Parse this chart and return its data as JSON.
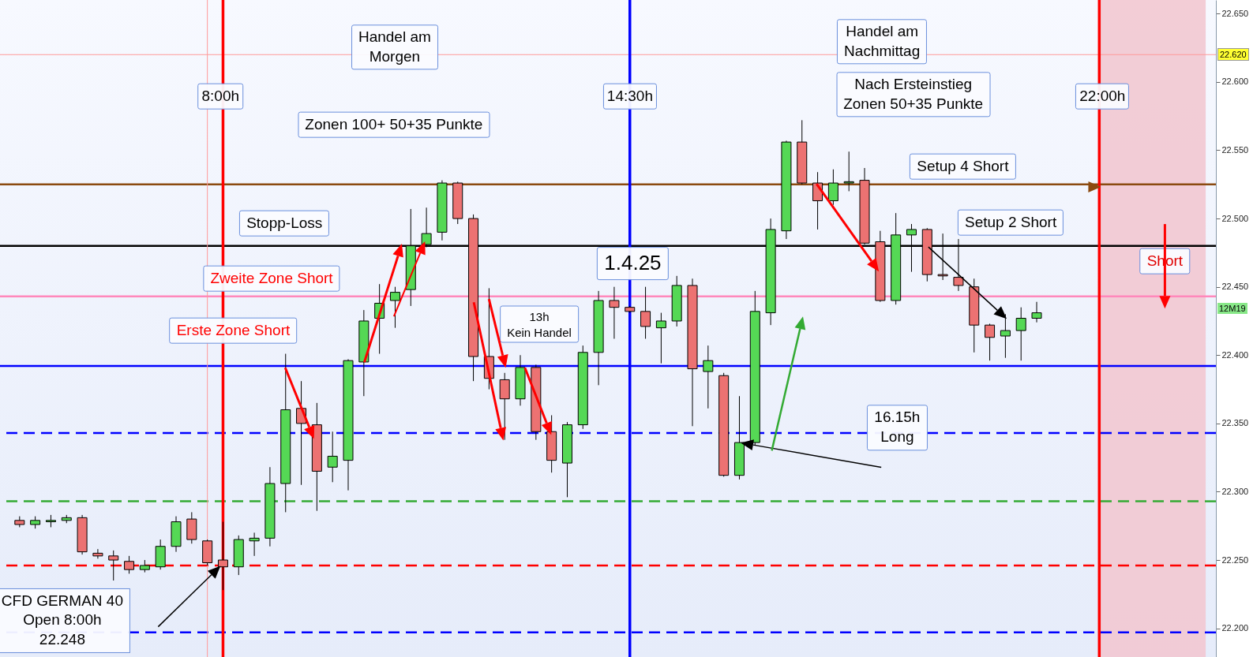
{
  "chart_data": {
    "type": "candlestick",
    "x": [
      4.75,
      5.0,
      5.25,
      5.5,
      5.75,
      6.0,
      6.25,
      6.5,
      6.75,
      7.0,
      7.25,
      7.5,
      7.75,
      8.0,
      8.25,
      8.5,
      8.75,
      9.0,
      9.25,
      9.5,
      9.75,
      10.0,
      10.25,
      10.5,
      10.75,
      11.0,
      11.25,
      11.5,
      11.75,
      12.0,
      12.25,
      12.5,
      12.75,
      13.0,
      13.25,
      13.5,
      13.75,
      14.0,
      14.25,
      14.5,
      14.75,
      15.0,
      15.25,
      15.5,
      15.75,
      16.0,
      16.25,
      16.5,
      16.75,
      17.0,
      17.25,
      17.5,
      17.75,
      18.0,
      18.25,
      18.5,
      18.75,
      19.0,
      19.25,
      19.5,
      19.75,
      20.0,
      20.25,
      20.5,
      20.75,
      21.0
    ],
    "ohlc": [
      [
        22.279,
        22.282,
        22.274,
        22.276
      ],
      [
        22.276,
        22.282,
        22.273,
        22.279
      ],
      [
        22.278,
        22.283,
        22.274,
        22.279
      ],
      [
        22.279,
        22.283,
        22.277,
        22.281
      ],
      [
        22.281,
        22.283,
        22.254,
        22.256
      ],
      [
        22.255,
        22.258,
        22.251,
        22.253
      ],
      [
        22.253,
        22.257,
        22.235,
        22.25
      ],
      [
        22.249,
        22.253,
        22.24,
        22.243
      ],
      [
        22.243,
        22.25,
        22.241,
        22.246
      ],
      [
        22.245,
        22.265,
        22.243,
        22.26
      ],
      [
        22.26,
        22.282,
        22.256,
        22.278
      ],
      [
        22.28,
        22.285,
        22.262,
        22.265
      ],
      [
        22.264,
        22.265,
        22.246,
        22.248
      ],
      [
        22.25,
        22.278,
        22.228,
        22.245
      ],
      [
        22.245,
        22.268,
        22.239,
        22.265
      ],
      [
        22.264,
        22.27,
        22.253,
        22.266
      ],
      [
        22.266,
        22.318,
        22.26,
        22.306
      ],
      [
        22.306,
        22.401,
        22.285,
        22.36
      ],
      [
        22.361,
        22.381,
        22.305,
        22.35
      ],
      [
        22.349,
        22.365,
        22.286,
        22.315
      ],
      [
        22.318,
        22.344,
        22.307,
        22.326
      ],
      [
        22.323,
        22.397,
        22.301,
        22.396
      ],
      [
        22.395,
        22.433,
        22.37,
        22.425
      ],
      [
        22.427,
        22.452,
        22.401,
        22.438
      ],
      [
        22.44,
        22.45,
        22.42,
        22.446
      ],
      [
        22.448,
        22.507,
        22.436,
        22.48
      ],
      [
        22.481,
        22.508,
        22.479,
        22.489
      ],
      [
        22.49,
        22.528,
        22.484,
        22.526
      ],
      [
        22.526,
        22.527,
        22.496,
        22.5
      ],
      [
        22.5,
        22.503,
        22.381,
        22.399
      ],
      [
        22.399,
        22.449,
        22.375,
        22.383
      ],
      [
        22.382,
        22.387,
        22.338,
        22.368
      ],
      [
        22.368,
        22.4,
        22.363,
        22.391
      ],
      [
        22.391,
        22.393,
        22.338,
        22.344
      ],
      [
        22.344,
        22.356,
        22.314,
        22.323
      ],
      [
        22.321,
        22.351,
        22.296,
        22.349
      ],
      [
        22.349,
        22.407,
        22.346,
        22.402
      ],
      [
        22.402,
        22.447,
        22.378,
        22.44
      ],
      [
        22.44,
        22.45,
        22.412,
        22.435
      ],
      [
        22.435,
        22.436,
        22.431,
        22.432
      ],
      [
        22.432,
        22.45,
        22.412,
        22.421
      ],
      [
        22.42,
        22.431,
        22.394,
        22.425
      ],
      [
        22.425,
        22.458,
        22.421,
        22.451
      ],
      [
        22.451,
        22.456,
        22.348,
        22.39
      ],
      [
        22.388,
        22.407,
        22.361,
        22.396
      ],
      [
        22.385,
        22.387,
        22.311,
        22.312
      ],
      [
        22.312,
        22.37,
        22.309,
        22.336
      ],
      [
        22.336,
        22.447,
        22.334,
        22.432
      ],
      [
        22.431,
        22.5,
        22.422,
        22.492
      ],
      [
        22.491,
        22.557,
        22.485,
        22.556
      ],
      [
        22.556,
        22.572,
        22.525,
        22.526
      ],
      [
        22.526,
        22.534,
        22.492,
        22.513
      ],
      [
        22.513,
        22.536,
        22.51,
        22.526
      ],
      [
        22.526,
        22.549,
        22.52,
        22.527
      ],
      [
        22.528,
        22.537,
        22.481,
        22.482
      ],
      [
        22.483,
        22.491,
        22.439,
        22.44
      ],
      [
        22.44,
        22.504,
        22.437,
        22.488
      ],
      [
        22.488,
        22.496,
        22.461,
        22.492
      ],
      [
        22.492,
        22.493,
        22.454,
        22.459
      ],
      [
        22.459,
        22.489,
        22.455,
        22.458
      ],
      [
        22.457,
        22.485,
        22.447,
        22.451
      ],
      [
        22.45,
        22.456,
        22.402,
        22.422
      ],
      [
        22.422,
        22.423,
        22.396,
        22.413
      ],
      [
        22.414,
        22.43,
        22.398,
        22.418
      ],
      [
        22.418,
        22.435,
        22.396,
        22.427
      ],
      [
        22.427,
        22.439,
        22.424,
        22.431
      ]
    ],
    "xlim": [
      4.5,
      23.8
    ],
    "ylim": [
      22.179,
      22.66
    ],
    "yticks": [
      {
        "value": 22.2,
        "label": "22.200"
      },
      {
        "value": 22.25,
        "label": "22.250"
      },
      {
        "value": 22.3,
        "label": "22.300"
      },
      {
        "value": 22.35,
        "label": "22.350"
      },
      {
        "value": 22.4,
        "label": "22.400"
      },
      {
        "value": 22.45,
        "label": "22.450"
      },
      {
        "value": 22.5,
        "label": "22.500"
      },
      {
        "value": 22.55,
        "label": "22.550"
      },
      {
        "value": 22.6,
        "label": "22.600"
      },
      {
        "value": 22.65,
        "label": "22.650"
      }
    ],
    "tick_labels": "y",
    "ref_lines": [
      {
        "axis": "y",
        "value": 22.62,
        "label": "22.620",
        "color": "#ff9999"
      },
      {
        "axis": "y",
        "value": 22.525,
        "color": "#8b4a10"
      },
      {
        "axis": "y",
        "value": 22.48,
        "color": "#000000"
      },
      {
        "axis": "y",
        "value": 22.443,
        "color": "#ff88bb"
      },
      {
        "axis": "y",
        "value": 22.392,
        "color": "#0000ff"
      },
      {
        "axis": "y",
        "value": 22.343,
        "color": "#0000ff",
        "line_style": "dashed"
      },
      {
        "axis": "y",
        "value": 22.293,
        "color": "#33aa33",
        "line_style": "dashed"
      },
      {
        "axis": "y",
        "value": 22.246,
        "color": "#ff0000",
        "line_style": "dashed"
      },
      {
        "axis": "y",
        "value": 22.197,
        "color": "#0000ff",
        "line_style": "dashed"
      },
      {
        "axis": "x",
        "value": 7.75,
        "color": "#ff9999"
      },
      {
        "axis": "x",
        "value": 8,
        "label": "8:00h",
        "color": "#ff0000"
      },
      {
        "axis": "x",
        "value": 14.5,
        "label": "14:30h",
        "color": "#0000ff"
      },
      {
        "axis": "x",
        "value": 22,
        "label": "22:00h",
        "color": "#ff0000"
      }
    ],
    "bands": [
      {
        "axis": "x",
        "from": 22,
        "to": 23.7,
        "color": "#f2c8d2"
      }
    ],
    "annotations": [
      "Handel am\nMorgen",
      "Zonen 100+ 50+35 Punkte",
      "Stopp-Loss",
      "Zweite Zone Short",
      "Erste Zone Short",
      "1.4.25",
      "13h\nKein Handel",
      "Handel am\nNachmittag",
      "Nach Ersteinstieg\nZonen 50+35 Punkte",
      "Setup 4 Short",
      "Setup 2 Short",
      "Short",
      "16.15h\nLong",
      "CFD GERMAN 40\nOpen 8:00h\n22.248",
      "12M19"
    ]
  }
}
